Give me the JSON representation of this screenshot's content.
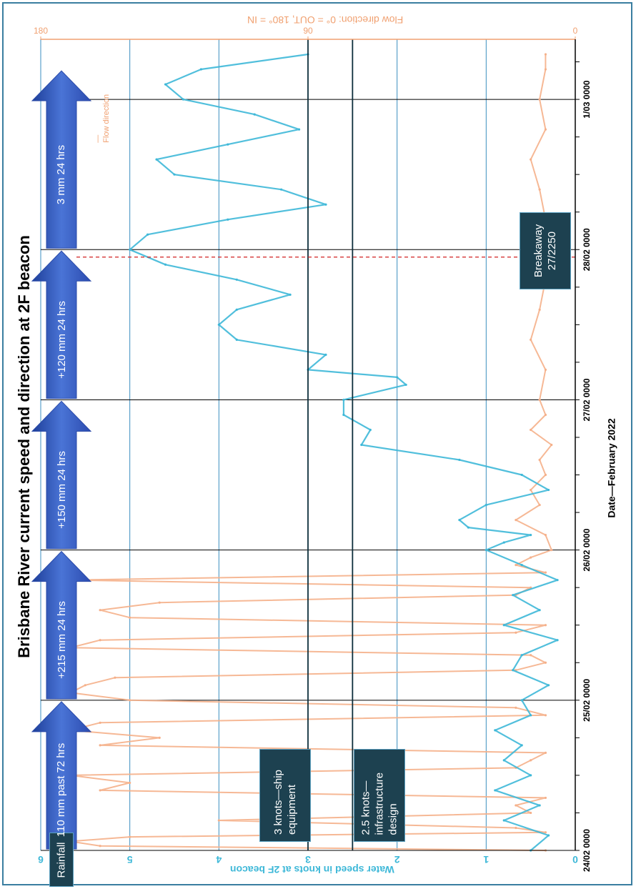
{
  "chart_data": {
    "type": "line",
    "title": "Brisbane River current speed and direction at 2F beacon",
    "xlabel": "Date—February 2022",
    "ylabel": "Water speed in knots at 2F beacon",
    "y2label": "Flow direction: 0° = OUT, 180° = IN",
    "x_ticks": [
      "24/02 0000",
      "25/02 0000",
      "26/02 0000",
      "27/02 0000",
      "28/02 0000",
      "1/03 0000"
    ],
    "x_range_days": [
      0,
      5.4
    ],
    "ylim": [
      0,
      6
    ],
    "y_ticks": [
      "0",
      "1",
      "2",
      "3",
      "4",
      "5",
      "6"
    ],
    "y2lim": [
      0,
      180
    ],
    "y2_ticks": [
      "0",
      "90",
      "180"
    ],
    "orientation": "rotated-90-ccw",
    "series": [
      {
        "name": "Water speed",
        "color": "#3eb8d8",
        "x": [
          0,
          0.1,
          0.2,
          0.3,
          0.4,
          0.5,
          0.6,
          0.7,
          0.8,
          0.9,
          1.0,
          1.1,
          1.2,
          1.3,
          1.4,
          1.5,
          1.6,
          1.7,
          1.8,
          1.9,
          2.0,
          2.05,
          2.1,
          2.15,
          2.2,
          2.3,
          2.4,
          2.5,
          2.6,
          2.7,
          2.8,
          2.9,
          3.0,
          3.1,
          3.15,
          3.2,
          3.3,
          3.4,
          3.5,
          3.6,
          3.7,
          3.8,
          3.9,
          4.0,
          4.1,
          4.2,
          4.3,
          4.4,
          4.5,
          4.6,
          4.7,
          4.8,
          4.9,
          5.0,
          5.1,
          5.2,
          5.3
        ],
        "values": [
          0.5,
          0.3,
          0.8,
          0.4,
          0.9,
          0.5,
          0.8,
          0.6,
          0.9,
          0.5,
          0.6,
          0.3,
          0.7,
          0.6,
          0.2,
          0.8,
          0.4,
          0.7,
          0.2,
          0.6,
          1.0,
          0.8,
          0.5,
          1.2,
          1.3,
          1.0,
          0.3,
          0.6,
          1.3,
          2.4,
          2.3,
          2.6,
          2.6,
          1.9,
          2.0,
          3.0,
          2.8,
          3.8,
          4.0,
          3.8,
          3.2,
          3.8,
          4.6,
          5.0,
          4.8,
          3.9,
          2.8,
          3.3,
          4.5,
          4.7,
          3.9,
          3.1,
          3.6,
          4.4,
          4.6,
          4.2,
          3.0
        ]
      },
      {
        "name": "Flow direction",
        "color": "#f5b08a",
        "x": [
          0,
          0.03,
          0.06,
          0.09,
          0.12,
          0.15,
          0.2,
          0.25,
          0.3,
          0.35,
          0.4,
          0.45,
          0.5,
          0.55,
          0.6,
          0.65,
          0.7,
          0.75,
          0.8,
          0.85,
          0.9,
          0.95,
          1.0,
          1.05,
          1.1,
          1.15,
          1.2,
          1.25,
          1.3,
          1.35,
          1.4,
          1.45,
          1.5,
          1.55,
          1.6,
          1.65,
          1.7,
          1.75,
          1.8,
          1.85,
          1.9,
          1.95,
          2.0,
          2.1,
          2.2,
          2.3,
          2.4,
          2.5,
          2.6,
          2.7,
          2.8,
          2.9,
          3.0,
          3.2,
          3.4,
          3.6,
          3.8,
          4.0,
          4.2,
          4.4,
          4.6,
          4.8,
          5.0,
          5.2,
          5.3
        ],
        "values": [
          10,
          160,
          170,
          150,
          10,
          20,
          120,
          15,
          20,
          10,
          160,
          150,
          170,
          20,
          15,
          10,
          160,
          140,
          170,
          160,
          10,
          20,
          150,
          170,
          165,
          155,
          20,
          10,
          15,
          170,
          160,
          20,
          10,
          150,
          160,
          140,
          20,
          15,
          170,
          10,
          20,
          15,
          8,
          10,
          20,
          12,
          15,
          10,
          12,
          8,
          15,
          10,
          12,
          10,
          15,
          12,
          10,
          14,
          10,
          12,
          15,
          10,
          12,
          10,
          10
        ]
      }
    ],
    "reference_lines": [
      {
        "label": "3 knots—ship equipment",
        "value": 3
      },
      {
        "label": "2.5 knots—infrastructure design",
        "value": 2.5
      }
    ],
    "annotations": [
      {
        "label": "Breakaway 27/2250",
        "x": 3.95
      },
      {
        "label": "Flow direction",
        "kind": "legend"
      }
    ],
    "rainfall_label": "Rainfall",
    "rainfall_arrows": [
      {
        "label": "110 mm past 72 hrs",
        "from": 0,
        "to": 1.0
      },
      {
        "label": "+215 mm 24 hrs",
        "from": 1.0,
        "to": 2.0
      },
      {
        "label": "+150 mm 24 hrs",
        "from": 2.0,
        "to": 3.0
      },
      {
        "label": "+120 mm 24 hrs",
        "from": 3.0,
        "to": 4.0
      },
      {
        "label": "3 mm 24 hrs",
        "from": 4.0,
        "to": 5.2
      }
    ]
  },
  "colors": {
    "speed": "#3eb8d8",
    "direction": "#f5b08a",
    "axis_left": "#3eb8d8",
    "axis_right": "#f0a070",
    "grid": "#3a8ec0",
    "arrow": "#3a62c4",
    "box": "#1d4150"
  }
}
